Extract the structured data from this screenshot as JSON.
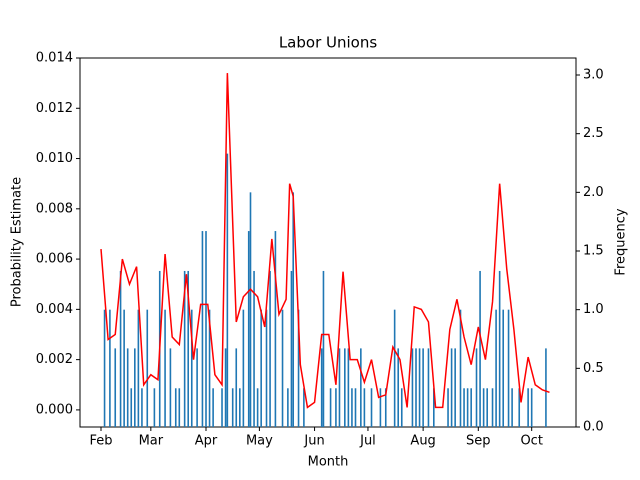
{
  "chart_data": {
    "type": "combo",
    "title": "Labor Unions",
    "xlabel": "Month",
    "ylabel": "Probability Estimate",
    "y2label": "Frequency",
    "xlim": [
      -11.8,
      266.9
    ],
    "xticks": [
      {
        "value": 0,
        "label": "Feb"
      },
      {
        "value": 28,
        "label": "Mar"
      },
      {
        "value": 59,
        "label": "Apr"
      },
      {
        "value": 89,
        "label": "May"
      },
      {
        "value": 120,
        "label": "Jun"
      },
      {
        "value": 150,
        "label": "Jul"
      },
      {
        "value": 181,
        "label": "Aug"
      },
      {
        "value": 212,
        "label": "Sep"
      },
      {
        "value": 242,
        "label": "Oct"
      }
    ],
    "ylim": [
      -0.00068,
      0.014
    ],
    "yticks": [
      {
        "value": 0,
        "label": "0.000"
      },
      {
        "value": 0.002,
        "label": "0.002"
      },
      {
        "value": 0.004,
        "label": "0.004"
      },
      {
        "value": 0.006,
        "label": "0.006"
      },
      {
        "value": 0.008,
        "label": "0.008"
      },
      {
        "value": 0.01,
        "label": "0.010"
      },
      {
        "value": 0.012,
        "label": "0.012"
      },
      {
        "value": 0.014,
        "label": "0.014"
      }
    ],
    "y2lim": [
      0,
      3.145
    ],
    "y2ticks": [
      {
        "value": 0,
        "label": "0.0"
      },
      0.5,
      {
        "value": 1,
        "label": "1.0"
      },
      1.5,
      {
        "value": 2,
        "label": "2.0"
      },
      2.5,
      {
        "value": 3,
        "label": "3.0"
      }
    ],
    "series": [
      {
        "type": "bar",
        "axis": "y2",
        "color": "#1f77b4",
        "x": [
          2,
          5,
          8,
          11,
          13,
          15,
          17,
          19,
          21,
          23,
          26,
          30,
          33,
          36,
          39,
          42,
          44,
          47,
          49,
          51,
          54,
          57,
          59,
          61,
          63,
          68,
          70,
          71,
          74,
          76,
          78,
          80,
          83,
          84,
          86,
          88,
          90,
          93,
          95,
          98,
          102,
          105,
          107,
          108,
          111,
          114,
          124,
          125,
          129,
          132,
          134,
          137,
          139,
          141,
          143,
          146,
          148,
          152,
          157,
          160,
          165,
          167,
          169,
          175,
          177,
          179,
          181,
          184,
          187,
          195,
          197,
          199,
          202,
          204,
          206,
          208,
          211,
          213,
          215,
          217,
          220,
          222,
          224,
          226,
          229,
          231,
          235,
          240,
          242,
          250
        ],
        "values": [
          1,
          1,
          0.67,
          1.33,
          1,
          0.67,
          0.33,
          0.67,
          1,
          0.33,
          1,
          0.33,
          1.33,
          1,
          0.67,
          0.33,
          0.33,
          1.33,
          1.33,
          1,
          0.67,
          1.67,
          1.67,
          1,
          0.33,
          0.33,
          0.67,
          2.33,
          0.33,
          0.67,
          0.33,
          1,
          1.67,
          2,
          1.33,
          0.33,
          1,
          1,
          1.33,
          1.67,
          1,
          0.33,
          1.33,
          2,
          1,
          0.33,
          0.67,
          1.33,
          0.33,
          0.33,
          0.67,
          0.67,
          0.67,
          0.33,
          0.33,
          0.67,
          0.33,
          0.33,
          0.33,
          0.33,
          1,
          0.67,
          0.33,
          0.67,
          0.67,
          0.67,
          0.67,
          0.67,
          0.33,
          0.33,
          0.67,
          0.67,
          1,
          0.33,
          0.33,
          0.33,
          0.67,
          1.33,
          0.33,
          0.33,
          0.33,
          1,
          1.33,
          1,
          1,
          0.33,
          0.33,
          0.33,
          0.33,
          0.67
        ]
      },
      {
        "type": "line",
        "color": "#ff0000",
        "x": [
          0,
          4,
          8,
          12,
          16,
          20,
          24,
          28,
          32,
          36,
          40,
          44,
          48,
          52,
          56,
          60,
          64,
          68,
          71,
          76,
          80,
          84,
          88,
          92,
          96,
          100,
          104,
          106,
          108,
          112,
          116,
          120,
          124,
          128,
          132,
          136,
          140,
          144,
          148,
          152,
          156,
          160,
          164,
          168,
          172,
          176,
          180,
          184,
          188,
          192,
          196,
          200,
          204,
          208,
          212,
          216,
          220,
          224,
          228,
          232,
          236,
          240,
          244,
          248,
          252
        ],
        "values": [
          0.0064,
          0.0028,
          0.003,
          0.006,
          0.005,
          0.0057,
          0.001,
          0.0014,
          0.0012,
          0.0062,
          0.0029,
          0.0026,
          0.0054,
          0.002,
          0.0042,
          0.0042,
          0.0014,
          0.001,
          0.0134,
          0.0035,
          0.0045,
          0.0048,
          0.0045,
          0.0033,
          0.0068,
          0.0038,
          0.0044,
          0.009,
          0.0085,
          0.0018,
          0.0001,
          0.0003,
          0.003,
          0.003,
          0.001,
          0.0055,
          0.002,
          0.002,
          0.0011,
          0.002,
          0.0005,
          0.0006,
          0.0025,
          0.002,
          0.0001,
          0.0041,
          0.004,
          0.0035,
          0.0001,
          0.0001,
          0.0032,
          0.0044,
          0.0029,
          0.0018,
          0.0033,
          0.002,
          0.0043,
          0.009,
          0.0056,
          0.0032,
          0.0003,
          0.0021,
          0.001,
          0.0008,
          0.0007
        ]
      }
    ]
  }
}
